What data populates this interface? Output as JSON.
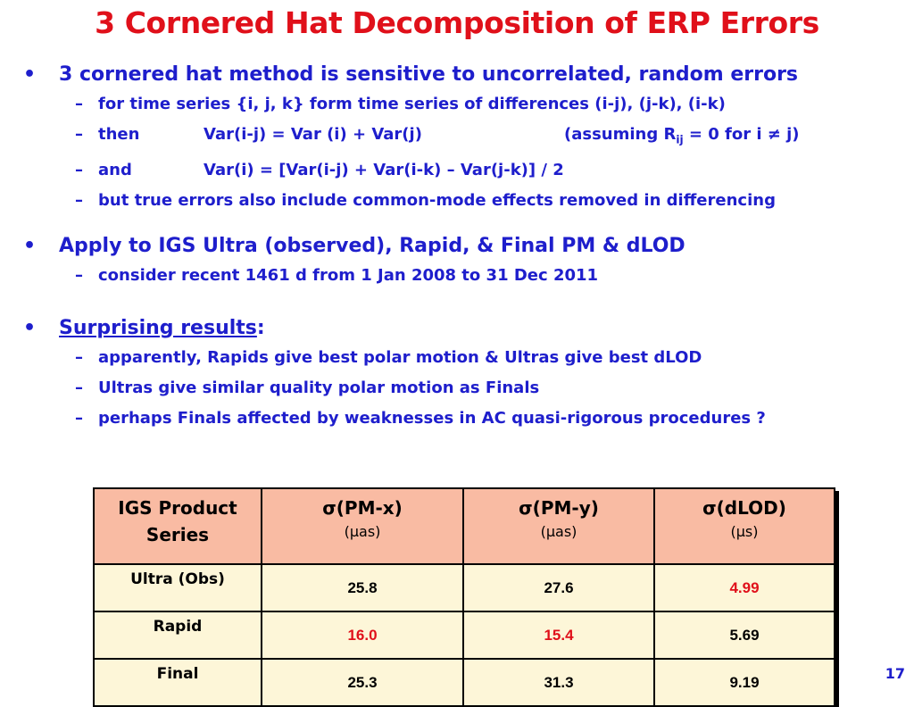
{
  "title": "3 Cornered Hat Decomposition of ERP Errors",
  "bullet1": {
    "text": "3 cornered hat method is sensitive to uncorrelated, random errors",
    "sub1": "for time series {i, j, k} form time series of differences (i-j), (j-k), (i-k)",
    "sub2": {
      "lead": "then",
      "eq": "Var(i-j) = Var (i) + Var(j)",
      "note_pre": "(assuming R",
      "note_sub": "ij",
      "note_post": " = 0 for i ≠ j)"
    },
    "sub3": {
      "lead": "and",
      "eq": "Var(i) = [Var(i-j) + Var(i-k) – Var(j-k)] / 2"
    },
    "sub4": "but true errors also include common-mode effects removed in differencing"
  },
  "bullet2": {
    "text": "Apply to IGS Ultra (observed), Rapid, & Final PM & dLOD",
    "sub1": "consider recent 1461 d from 1 Jan 2008 to 31 Dec 2011"
  },
  "bullet3": {
    "text": "Surprising results",
    "colon": ":",
    "sub1": "apparently, Rapids give best polar motion & Ultras give best dLOD",
    "sub2": "Ultras give similar quality polar motion as Finals",
    "sub3": "perhaps Finals affected by weaknesses in AC quasi-rigorous procedures ?"
  },
  "table": {
    "headers": [
      {
        "label": "IGS Product Series",
        "unit": ""
      },
      {
        "label": "σ(PM-x)",
        "unit": "(μas)"
      },
      {
        "label": "σ(PM-y)",
        "unit": "(μas)"
      },
      {
        "label": "σ(dLOD)",
        "unit": "(μs)"
      }
    ],
    "rows": [
      {
        "name": "Ultra (Obs)",
        "pmx": "25.8",
        "pmy": "27.6",
        "dlod": "4.99"
      },
      {
        "name": "Rapid",
        "pmx": "16.0",
        "pmy": "15.4",
        "dlod": "5.69"
      },
      {
        "name": "Final",
        "pmx": "25.3",
        "pmy": "31.3",
        "dlod": "9.19"
      }
    ],
    "highlight_color": "#e0101a"
  },
  "page_number": "17"
}
